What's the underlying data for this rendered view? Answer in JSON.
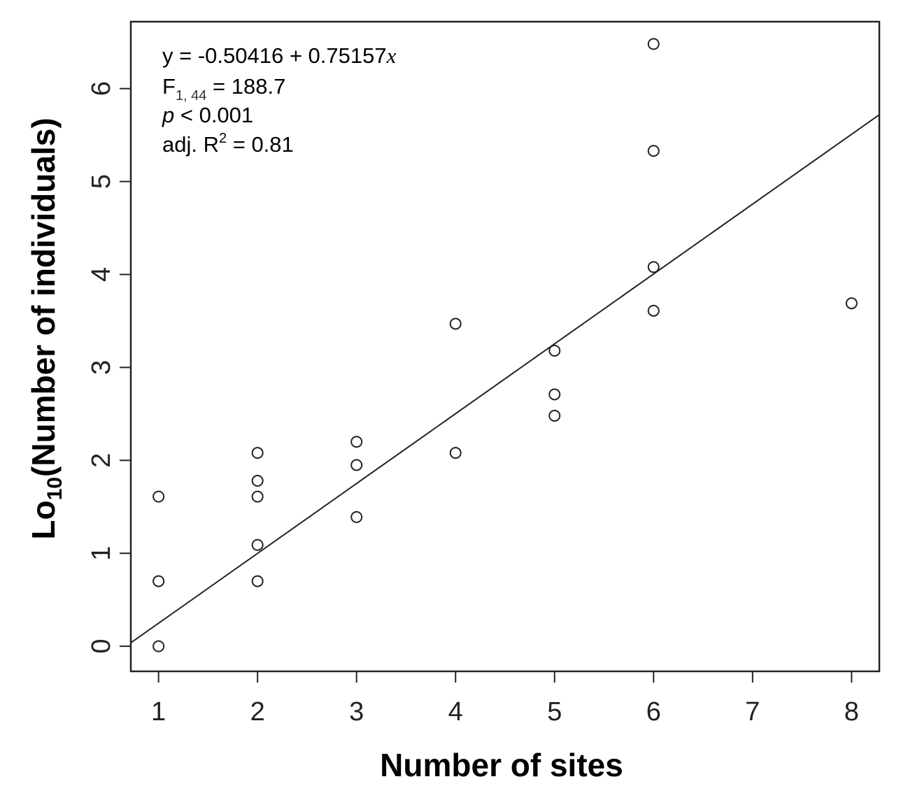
{
  "chart_data": {
    "type": "scatter",
    "title": "",
    "xlabel": "Number of sites",
    "ylabel_main": "Lo",
    "ylabel_sub": "10",
    "ylabel_rest": "(Number of individuals)",
    "xlim": [
      0.72,
      8.28
    ],
    "ylim": [
      -0.27,
      6.72
    ],
    "xticks": [
      1,
      2,
      3,
      4,
      5,
      6,
      7,
      8
    ],
    "yticks": [
      0,
      1,
      2,
      3,
      4,
      5,
      6
    ],
    "grid": false,
    "points": {
      "x": [
        1,
        1,
        1,
        2,
        2,
        2,
        2,
        2,
        3,
        3,
        3,
        4,
        4,
        5,
        5,
        5,
        6,
        6,
        6,
        6,
        8
      ],
      "y": [
        0.0,
        0.7,
        1.61,
        0.7,
        1.09,
        1.61,
        1.78,
        2.08,
        1.39,
        1.95,
        2.2,
        2.08,
        3.47,
        2.48,
        2.71,
        3.18,
        3.61,
        4.08,
        5.33,
        6.48,
        3.69
      ]
    },
    "fit_line": {
      "intercept": -0.50416,
      "slope": 0.75157
    },
    "annotations": {
      "equation_prefix": "y = -0.50416 + 0.75157",
      "equation_var": "x",
      "f_label": "F",
      "f_sub": "1, 44",
      "f_value": " = 188.7",
      "p_var": "p",
      "p_value": " < 0.001",
      "r2_prefix": "adj. R",
      "r2_sup": "2",
      "r2_value": " = 0.81"
    }
  }
}
